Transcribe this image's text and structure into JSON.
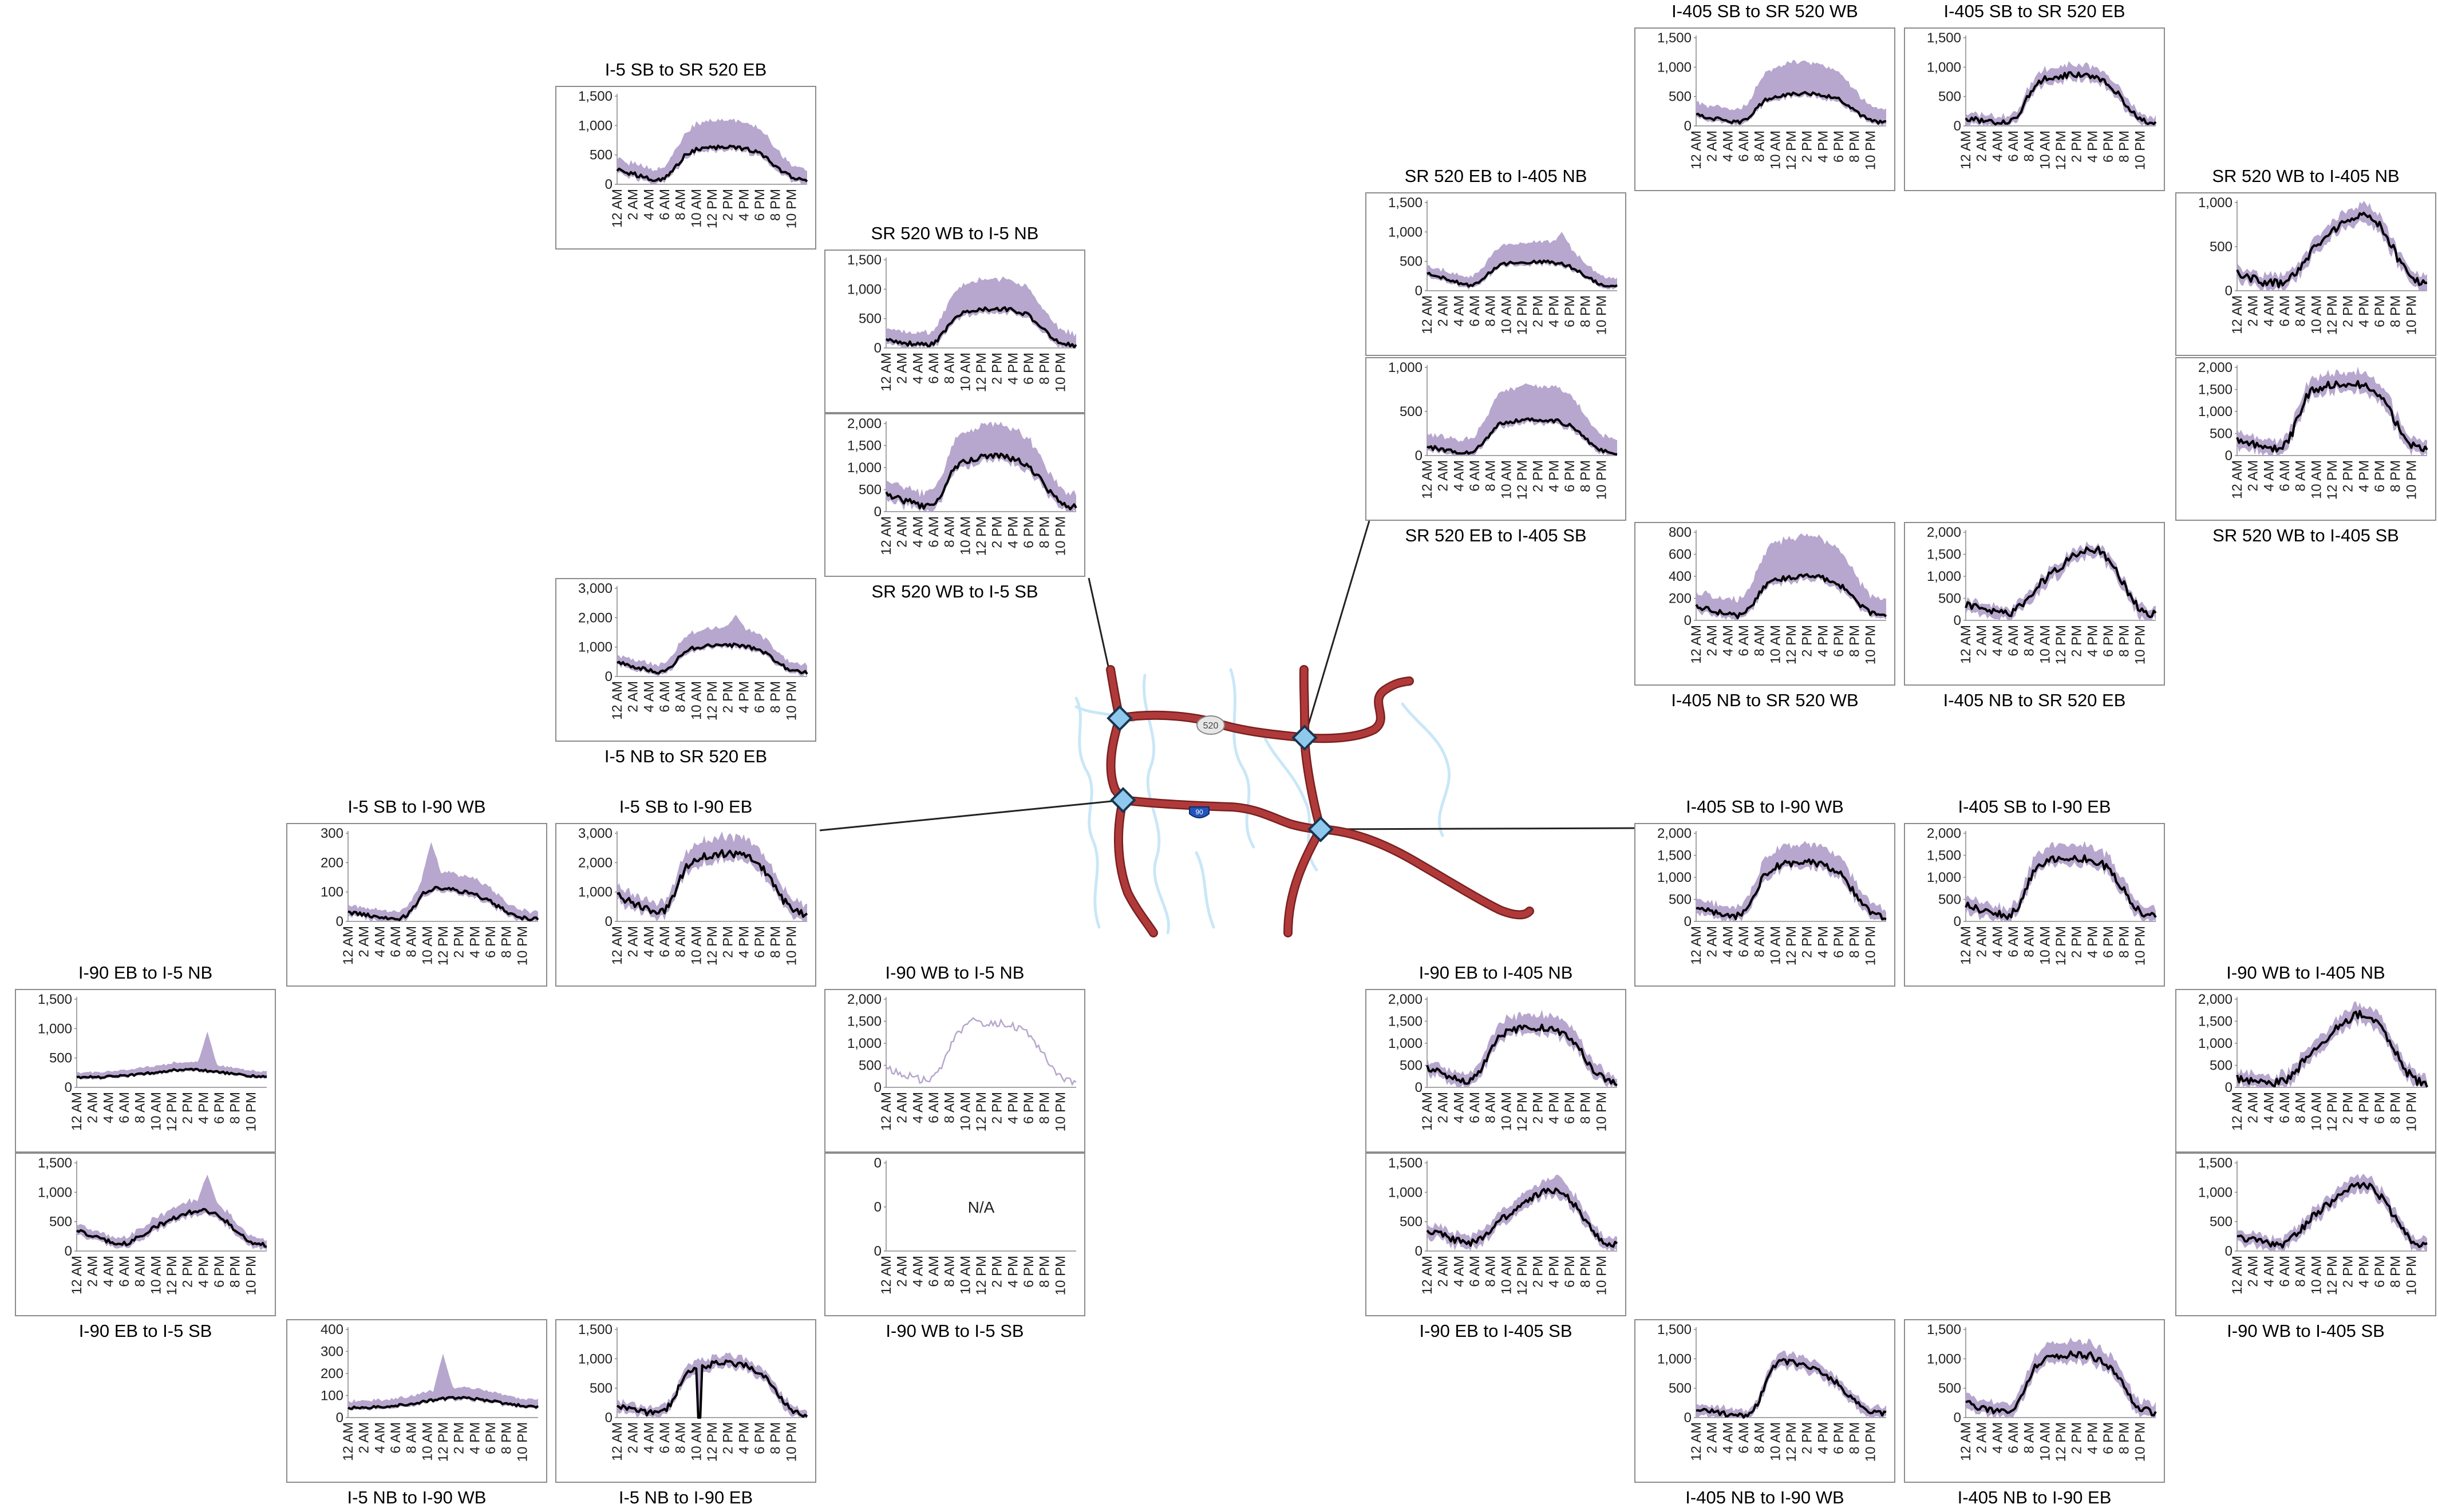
{
  "colors": {
    "range_fill": "#b7a6cd",
    "line": "#000000",
    "thin_line": "#b7a6cd",
    "frame": "#8c8c8c",
    "road": "#b03a3a",
    "road_outline": "#7a2020",
    "water": "#c9e7f7",
    "node": "#8ec8ec",
    "node_stroke": "#1a3550",
    "leader": "#222222"
  },
  "map": {
    "shield_520_label": "520",
    "shield_90_label": "90"
  },
  "x_tick_labels": [
    "12 AM",
    "2 AM",
    "4 AM",
    "6 AM",
    "8 AM",
    "10 AM",
    "12 PM",
    "2 PM",
    "4 PM",
    "6 PM",
    "8 PM",
    "10 PM"
  ],
  "chart_data": [
    {
      "id": "i5sb-sr520eb",
      "type": "area",
      "title": "I-5 SB to SR 520 EB",
      "title_pos": "top",
      "y_ticks": [
        "0",
        "500",
        "1,000",
        "1,500"
      ],
      "ylim": [
        0,
        1500
      ],
      "profile": "midday",
      "line_peak": 600,
      "range_peak": 1000,
      "early": 200,
      "spike_hour": null,
      "spike_value": null,
      "variant": "normal"
    },
    {
      "id": "sr520wb-i5nb",
      "type": "area",
      "title": "SR 520 WB to I-5 NB",
      "title_pos": "top",
      "y_ticks": [
        "0",
        "500",
        "1,000",
        "1,500"
      ],
      "ylim": [
        0,
        1500
      ],
      "profile": "midday",
      "line_peak": 650,
      "range_peak": 1100,
      "early": 100,
      "spike_hour": null,
      "spike_value": null,
      "variant": "normal"
    },
    {
      "id": "sr520wb-i5sb",
      "type": "area",
      "title": "SR 520 WB to I-5 SB",
      "title_pos": "bottom",
      "y_ticks": [
        "0",
        "500",
        "1,000",
        "1,500",
        "2,000"
      ],
      "ylim": [
        0,
        2000
      ],
      "profile": "midday",
      "line_peak": 1200,
      "range_peak": 1800,
      "early": 300,
      "spike_hour": null,
      "spike_value": null,
      "variant": "normal"
    },
    {
      "id": "i5nb-sr520eb",
      "type": "area",
      "title": "I-5 NB to SR 520 EB",
      "title_pos": "bottom",
      "y_ticks": [
        "0",
        "1,000",
        "2,000",
        "3,000"
      ],
      "ylim": [
        0,
        3000
      ],
      "profile": "midday",
      "line_peak": 1000,
      "range_peak": 1500,
      "early": 400,
      "spike_hour": 15,
      "spike_value": 2100,
      "variant": "normal"
    },
    {
      "id": "i5sb-i90wb",
      "type": "area",
      "title": "I-5 SB to I-90 WB",
      "title_pos": "top",
      "y_ticks": [
        "0",
        "100",
        "200",
        "300"
      ],
      "ylim": [
        0,
        300
      ],
      "profile": "late_morning",
      "line_peak": 110,
      "range_peak": 160,
      "early": 25,
      "spike_hour": 10.5,
      "spike_value": 270,
      "variant": "normal"
    },
    {
      "id": "i5sb-i90eb",
      "type": "area",
      "title": "I-5 SB to I-90 EB",
      "title_pos": "top",
      "y_ticks": [
        "0",
        "1,000",
        "2,000",
        "3,000"
      ],
      "ylim": [
        0,
        3000
      ],
      "profile": "midday",
      "line_peak": 2200,
      "range_peak": 2600,
      "early": 700,
      "spike_hour": null,
      "spike_value": null,
      "variant": "normal"
    },
    {
      "id": "i90eb-i5nb",
      "type": "area",
      "title": "I-90 EB to I-5 NB",
      "title_pos": "top",
      "y_ticks": [
        "0",
        "500",
        "1,000",
        "1,500"
      ],
      "ylim": [
        0,
        1500
      ],
      "profile": "flat_pm",
      "line_peak": 300,
      "range_peak": 400,
      "early": 100,
      "spike_hour": 16.5,
      "spike_value": 950,
      "variant": "normal"
    },
    {
      "id": "i90eb-i5sb",
      "type": "area",
      "title": "I-90 EB to I-5 SB",
      "title_pos": "bottom",
      "y_ticks": [
        "0",
        "500",
        "1,000",
        "1,500"
      ],
      "ylim": [
        0,
        1500
      ],
      "profile": "pm",
      "line_peak": 650,
      "range_peak": 800,
      "early": 300,
      "spike_hour": 16.5,
      "spike_value": 1300,
      "variant": "normal"
    },
    {
      "id": "i5nb-i90wb",
      "type": "area",
      "title": "I-5 NB to I-90 WB",
      "title_pos": "bottom",
      "y_ticks": [
        "0",
        "100",
        "200",
        "300",
        "400"
      ],
      "ylim": [
        0,
        400
      ],
      "profile": "flat_pm",
      "line_peak": 90,
      "range_peak": 130,
      "early": 20,
      "spike_hour": 12,
      "spike_value": 290,
      "variant": "normal"
    },
    {
      "id": "i5nb-i90eb",
      "type": "area",
      "title": "I-5 NB to I-90 EB",
      "title_pos": "bottom",
      "y_ticks": [
        "0",
        "500",
        "1,000",
        "1,500"
      ],
      "ylim": [
        0,
        1500
      ],
      "profile": "midday",
      "line_peak": 900,
      "range_peak": 950,
      "early": 150,
      "spike_hour": null,
      "spike_value": null,
      "variant": "dip"
    },
    {
      "id": "i90wb-i5nb",
      "type": "line",
      "title": "I-90 WB to I-5 NB",
      "title_pos": "top",
      "y_ticks": [
        "0",
        "500",
        "1,000",
        "1,500",
        "2,000"
      ],
      "ylim": [
        0,
        2000
      ],
      "profile": "midday",
      "line_peak": 1400,
      "range_peak": 1400,
      "early": 350,
      "spike_hour": 11,
      "spike_value": 1600,
      "variant": "thin"
    },
    {
      "id": "i90wb-i5sb",
      "type": "line",
      "title": "I-90 WB to I-5 SB",
      "title_pos": "bottom",
      "y_ticks": [
        "0",
        "0",
        "0"
      ],
      "ylim": [
        0,
        1
      ],
      "profile": "none",
      "line_peak": 0,
      "range_peak": 0,
      "early": 0,
      "spike_hour": null,
      "spike_value": null,
      "variant": "na",
      "na_label": "N/A"
    },
    {
      "id": "i405sb-sr520wb",
      "type": "area",
      "title": "I-405 SB to SR 520 WB",
      "title_pos": "top",
      "y_ticks": [
        "0",
        "500",
        "1,000",
        "1,500"
      ],
      "ylim": [
        0,
        1500
      ],
      "profile": "midday",
      "line_peak": 520,
      "range_peak": 1000,
      "early": 150,
      "spike_hour": 16.5,
      "spike_value": 600,
      "variant": "normal"
    },
    {
      "id": "i405sb-sr520eb",
      "type": "area",
      "title": "I-405 SB to SR 520 EB",
      "title_pos": "top",
      "y_ticks": [
        "0",
        "500",
        "1,000",
        "1,500"
      ],
      "ylim": [
        0,
        1500
      ],
      "profile": "midday",
      "line_peak": 850,
      "range_peak": 950,
      "early": 100,
      "spike_hour": null,
      "spike_value": null,
      "variant": "normal"
    },
    {
      "id": "sr520eb-i405nb",
      "type": "area",
      "title": "SR 520 EB to I-405 NB",
      "title_pos": "top",
      "y_ticks": [
        "0",
        "500",
        "1,000",
        "1,500"
      ],
      "ylim": [
        0,
        1500
      ],
      "profile": "midday",
      "line_peak": 450,
      "range_peak": 750,
      "early": 250,
      "spike_hour": 17,
      "spike_value": 1000,
      "variant": "normal"
    },
    {
      "id": "sr520eb-i405sb",
      "type": "area",
      "title": "SR 520 EB to I-405 SB",
      "title_pos": "bottom",
      "y_ticks": [
        "0",
        "500",
        "1,000"
      ],
      "ylim": [
        0,
        1000
      ],
      "profile": "midday",
      "line_peak": 400,
      "range_peak": 750,
      "early": 80,
      "spike_hour": null,
      "spike_value": null,
      "variant": "normal"
    },
    {
      "id": "sr520wb-i405nb",
      "type": "area",
      "title": "SR 520 WB to I-405 NB",
      "title_pos": "top",
      "y_ticks": [
        "0",
        "500",
        "1,000"
      ],
      "ylim": [
        0,
        1000
      ],
      "profile": "pm",
      "line_peak": 850,
      "range_peak": 900,
      "early": 150,
      "spike_hour": null,
      "spike_value": null,
      "variant": "normal"
    },
    {
      "id": "sr520wb-i405sb",
      "type": "area",
      "title": "SR 520 WB to I-405 SB",
      "title_pos": "bottom",
      "y_ticks": [
        "0",
        "500",
        "1,000",
        "1,500",
        "2,000"
      ],
      "ylim": [
        0,
        2000
      ],
      "profile": "midday",
      "line_peak": 1600,
      "range_peak": 1750,
      "early": 300,
      "spike_hour": null,
      "spike_value": null,
      "variant": "normal"
    },
    {
      "id": "i405nb-sr520wb",
      "type": "area",
      "title": "I-405 NB to SR 520 WB",
      "title_pos": "bottom",
      "y_ticks": [
        "0",
        "200",
        "400",
        "600",
        "800"
      ],
      "ylim": [
        0,
        800
      ],
      "profile": "midday",
      "line_peak": 380,
      "range_peak": 700,
      "early": 100,
      "spike_hour": null,
      "spike_value": null,
      "variant": "normal"
    },
    {
      "id": "i405nb-sr520eb",
      "type": "area",
      "title": "I-405 NB to SR 520 EB",
      "title_pos": "bottom",
      "y_ticks": [
        "0",
        "500",
        "1,000",
        "1,500",
        "2,000"
      ],
      "ylim": [
        0,
        2000
      ],
      "profile": "pm",
      "line_peak": 1600,
      "range_peak": 1500,
      "early": 300,
      "spike_hour": null,
      "spike_value": null,
      "variant": "normal"
    },
    {
      "id": "i405sb-i90wb",
      "type": "area",
      "title": "I-405 SB to I-90 WB",
      "title_pos": "top",
      "y_ticks": [
        "0",
        "500",
        "1,000",
        "1,500",
        "2,000"
      ],
      "ylim": [
        0,
        2000
      ],
      "profile": "midday",
      "line_peak": 1300,
      "range_peak": 1600,
      "early": 250,
      "spike_hour": null,
      "spike_value": null,
      "variant": "normal"
    },
    {
      "id": "i405sb-i90eb",
      "type": "area",
      "title": "I-405 SB to I-90 EB",
      "title_pos": "top",
      "y_ticks": [
        "0",
        "500",
        "1,000",
        "1,500",
        "2,000"
      ],
      "ylim": [
        0,
        2000
      ],
      "profile": "midday",
      "line_peak": 1400,
      "range_peak": 1600,
      "early": 300,
      "spike_hour": null,
      "spike_value": null,
      "variant": "normal"
    },
    {
      "id": "i90eb-i405nb",
      "type": "area",
      "title": "I-90 EB to I-405 NB",
      "title_pos": "top",
      "y_ticks": [
        "0",
        "500",
        "1,000",
        "1,500",
        "2,000"
      ],
      "ylim": [
        0,
        2000
      ],
      "profile": "midday",
      "line_peak": 1300,
      "range_peak": 1500,
      "early": 350,
      "spike_hour": null,
      "spike_value": null,
      "variant": "normal"
    },
    {
      "id": "i90eb-i405sb",
      "type": "area",
      "title": "I-90 EB to I-405 SB",
      "title_pos": "bottom",
      "y_ticks": [
        "0",
        "500",
        "1,000",
        "1,500"
      ],
      "ylim": [
        0,
        1500
      ],
      "profile": "pm",
      "line_peak": 1000,
      "range_peak": 1100,
      "early": 300,
      "spike_hour": 16.5,
      "spike_value": 1300,
      "variant": "normal"
    },
    {
      "id": "i90wb-i405nb",
      "type": "area",
      "title": "I-90 WB to I-405 NB",
      "title_pos": "top",
      "y_ticks": [
        "0",
        "500",
        "1,000",
        "1,500",
        "2,000"
      ],
      "ylim": [
        0,
        2000
      ],
      "profile": "pm",
      "line_peak": 1650,
      "range_peak": 1750,
      "early": 150,
      "spike_hour": null,
      "spike_value": null,
      "variant": "normal"
    },
    {
      "id": "i90wb-i405sb",
      "type": "area",
      "title": "I-90 WB to I-405 SB",
      "title_pos": "bottom",
      "y_ticks": [
        "0",
        "500",
        "1,000",
        "1,500"
      ],
      "ylim": [
        0,
        1500
      ],
      "profile": "pm",
      "line_peak": 1100,
      "range_peak": 1150,
      "early": 200,
      "spike_hour": null,
      "spike_value": null,
      "variant": "normal"
    },
    {
      "id": "i405nb-i90wb",
      "type": "area",
      "title": "I-405 NB to I-90 WB",
      "title_pos": "bottom",
      "y_ticks": [
        "0",
        "500",
        "1,000",
        "1,500"
      ],
      "ylim": [
        0,
        1500
      ],
      "profile": "late_morning",
      "line_peak": 950,
      "range_peak": 1000,
      "early": 120,
      "spike_hour": null,
      "spike_value": null,
      "variant": "normal"
    },
    {
      "id": "i405nb-i90eb",
      "type": "area",
      "title": "I-405 NB to I-90 EB",
      "title_pos": "bottom",
      "y_ticks": [
        "0",
        "500",
        "1,000",
        "1,500"
      ],
      "ylim": [
        0,
        1500
      ],
      "profile": "midday",
      "line_peak": 1050,
      "range_peak": 1200,
      "early": 200,
      "spike_hour": null,
      "spike_value": null,
      "variant": "normal"
    }
  ]
}
